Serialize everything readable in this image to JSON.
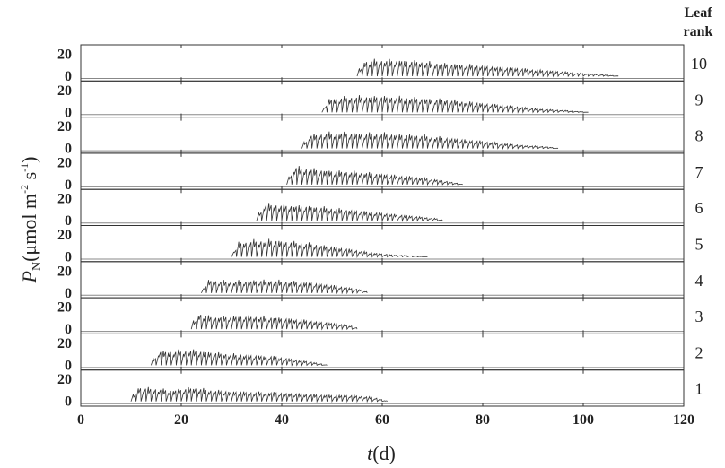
{
  "chart_data": {
    "type": "line",
    "xlabel_symbol": "t",
    "xlabel_unit": "(d)",
    "ylabel_symbol": "P",
    "ylabel_subscript": "N",
    "ylabel_unit_a": "(μmol m",
    "ylabel_sup_a": "-2",
    "ylabel_unit_b": " s",
    "ylabel_sup_b": "-1",
    "ylabel_unit_c": ")",
    "right_header": [
      "Leaf",
      "rank"
    ],
    "xlim": [
      0,
      120
    ],
    "xticks": [
      0,
      20,
      40,
      60,
      80,
      100,
      120
    ],
    "panel_ylim": [
      0,
      22
    ],
    "panel_yticks": [
      0,
      20
    ],
    "grid": false,
    "series": [
      {
        "name": "1",
        "x": [
          10,
          11,
          14,
          18,
          22,
          26,
          30,
          34,
          38,
          42,
          46,
          50,
          54,
          58,
          61
        ],
        "y": [
          0,
          14,
          13,
          11,
          14,
          11,
          10,
          9,
          9,
          8,
          7,
          6,
          6,
          4,
          0
        ]
      },
      {
        "name": "2",
        "x": [
          14,
          15,
          18,
          22,
          26,
          30,
          34,
          38,
          42,
          46,
          49
        ],
        "y": [
          0,
          14,
          14,
          15,
          13,
          11,
          10,
          9,
          6,
          3,
          0
        ]
      },
      {
        "name": "3",
        "x": [
          22,
          23,
          26,
          30,
          34,
          38,
          42,
          46,
          50,
          54,
          55
        ],
        "y": [
          0,
          16,
          12,
          13,
          13,
          12,
          10,
          8,
          6,
          3,
          0
        ]
      },
      {
        "name": "4",
        "x": [
          24,
          25,
          28,
          32,
          36,
          40,
          44,
          48,
          52,
          56,
          57
        ],
        "y": [
          0,
          13,
          12,
          12,
          13,
          12,
          11,
          9,
          6,
          3,
          0
        ]
      },
      {
        "name": "5",
        "x": [
          30,
          31,
          34,
          38,
          42,
          46,
          50,
          54,
          58,
          62,
          66,
          69
        ],
        "y": [
          0,
          14,
          16,
          17,
          15,
          13,
          10,
          7,
          4,
          2,
          1,
          0
        ]
      },
      {
        "name": "6",
        "x": [
          35,
          36,
          39,
          43,
          47,
          51,
          55,
          59,
          63,
          67,
          71,
          72
        ],
        "y": [
          0,
          17,
          16,
          15,
          14,
          12,
          10,
          8,
          6,
          4,
          2,
          0
        ]
      },
      {
        "name": "7",
        "x": [
          41,
          42,
          45,
          49,
          53,
          57,
          61,
          65,
          69,
          73,
          76
        ],
        "y": [
          0,
          18,
          16,
          14,
          13,
          12,
          10,
          8,
          6,
          3,
          0
        ]
      },
      {
        "name": "8",
        "x": [
          44,
          45,
          48,
          52,
          56,
          60,
          64,
          68,
          72,
          76,
          80,
          84,
          88,
          92,
          95
        ],
        "y": [
          0,
          13,
          15,
          16,
          15,
          15,
          14,
          13,
          11,
          9,
          7,
          5,
          3,
          2,
          0
        ]
      },
      {
        "name": "9",
        "x": [
          48,
          49,
          52,
          56,
          60,
          64,
          68,
          72,
          76,
          80,
          84,
          88,
          92,
          96,
          101
        ],
        "y": [
          0,
          13,
          15,
          16,
          16,
          15,
          14,
          13,
          11,
          9,
          7,
          5,
          3,
          2,
          0
        ]
      },
      {
        "name": "10",
        "x": [
          55,
          56,
          59,
          63,
          67,
          71,
          75,
          79,
          83,
          87,
          91,
          95,
          99,
          103,
          107
        ],
        "y": [
          0,
          15,
          16,
          16,
          15,
          13,
          12,
          11,
          9,
          8,
          6,
          5,
          3,
          2,
          0
        ]
      }
    ]
  }
}
